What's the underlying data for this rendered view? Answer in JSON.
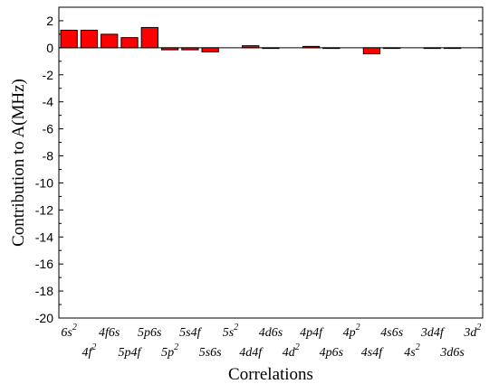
{
  "chart_data": {
    "type": "bar",
    "title": "",
    "xlabel": "Correlations",
    "ylabel": "Contribution to  A(MHz)",
    "ylim": [
      -20,
      3
    ],
    "yticks": [
      2,
      0,
      -2,
      -4,
      -6,
      -8,
      -10,
      -12,
      -14,
      -16,
      -18,
      -20
    ],
    "grid": false,
    "bar_color": "#ff0000",
    "categories": [
      {
        "base": "6s",
        "sup": "2"
      },
      {
        "base": "4f",
        "sup": "2"
      },
      {
        "base": "4f6s",
        "sup": ""
      },
      {
        "base": "5p4f",
        "sup": ""
      },
      {
        "base": "5p6s",
        "sup": ""
      },
      {
        "base": "5p",
        "sup": "2"
      },
      {
        "base": "5s4f",
        "sup": ""
      },
      {
        "base": "5s6s",
        "sup": ""
      },
      {
        "base": "5s",
        "sup": "2"
      },
      {
        "base": "4d4f",
        "sup": ""
      },
      {
        "base": "4d6s",
        "sup": ""
      },
      {
        "base": "4d",
        "sup": "2"
      },
      {
        "base": "4p4f",
        "sup": ""
      },
      {
        "base": "4p6s",
        "sup": ""
      },
      {
        "base": "4p",
        "sup": "2"
      },
      {
        "base": "4s4f",
        "sup": ""
      },
      {
        "base": "4s6s",
        "sup": ""
      },
      {
        "base": "4s",
        "sup": "2"
      },
      {
        "base": "3d4f",
        "sup": ""
      },
      {
        "base": "3d6s",
        "sup": ""
      },
      {
        "base": "3d",
        "sup": "2"
      }
    ],
    "values": [
      1.3,
      1.3,
      1.0,
      0.75,
      1.5,
      -0.15,
      -0.15,
      -0.3,
      0.0,
      0.15,
      -0.05,
      0.0,
      0.1,
      -0.05,
      0.0,
      -0.45,
      -0.05,
      0.0,
      -0.05,
      -0.05,
      0.0
    ]
  }
}
